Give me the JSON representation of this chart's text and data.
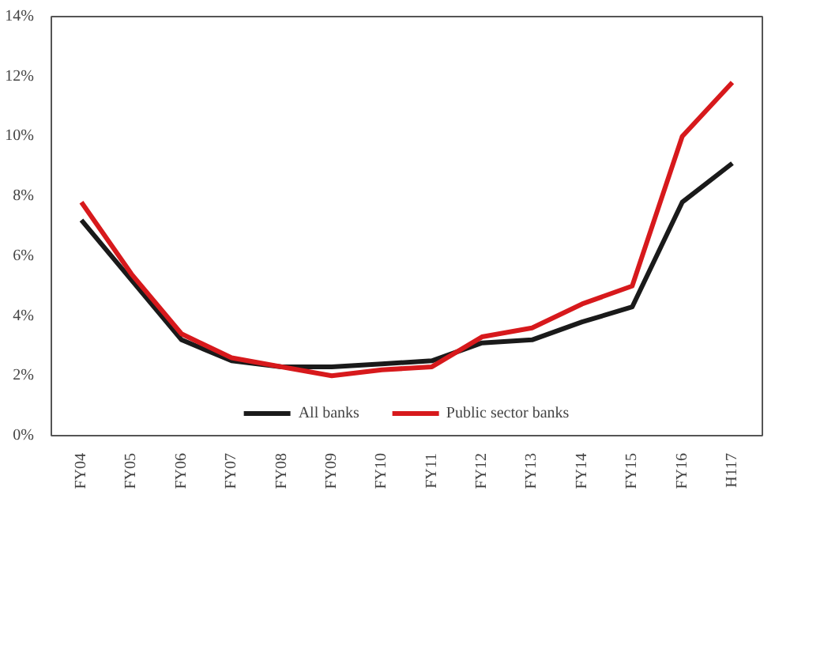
{
  "chart_data": {
    "type": "line",
    "categories": [
      "FY04",
      "FY05",
      "FY06",
      "FY07",
      "FY08",
      "FY09",
      "FY10",
      "FY11",
      "FY12",
      "FY13",
      "FY14",
      "FY15",
      "FY16",
      "H117"
    ],
    "series": [
      {
        "name": "All banks",
        "color": "#1a1a1a",
        "values": [
          7.2,
          5.2,
          3.2,
          2.5,
          2.3,
          2.3,
          2.4,
          2.5,
          3.1,
          3.2,
          3.8,
          4.3,
          7.8,
          9.1
        ]
      },
      {
        "name": "Public sector banks",
        "color": "#d7191c",
        "values": [
          7.8,
          5.4,
          3.4,
          2.6,
          2.3,
          2.0,
          2.2,
          2.3,
          3.3,
          3.6,
          4.4,
          5.0,
          10.0,
          11.8
        ]
      }
    ],
    "ylim": [
      0,
      14
    ],
    "yticks": [
      {
        "value": 0,
        "label": "0%"
      },
      {
        "value": 2,
        "label": "2%"
      },
      {
        "value": 4,
        "label": "4%"
      },
      {
        "value": 6,
        "label": "6%"
      },
      {
        "value": 8,
        "label": "8%"
      },
      {
        "value": 10,
        "label": "10%"
      },
      {
        "value": 12,
        "label": "12%"
      },
      {
        "value": 14,
        "label": "14%"
      }
    ],
    "grid": false,
    "legend": "bottom",
    "marker": "none",
    "line_style": "solid"
  }
}
